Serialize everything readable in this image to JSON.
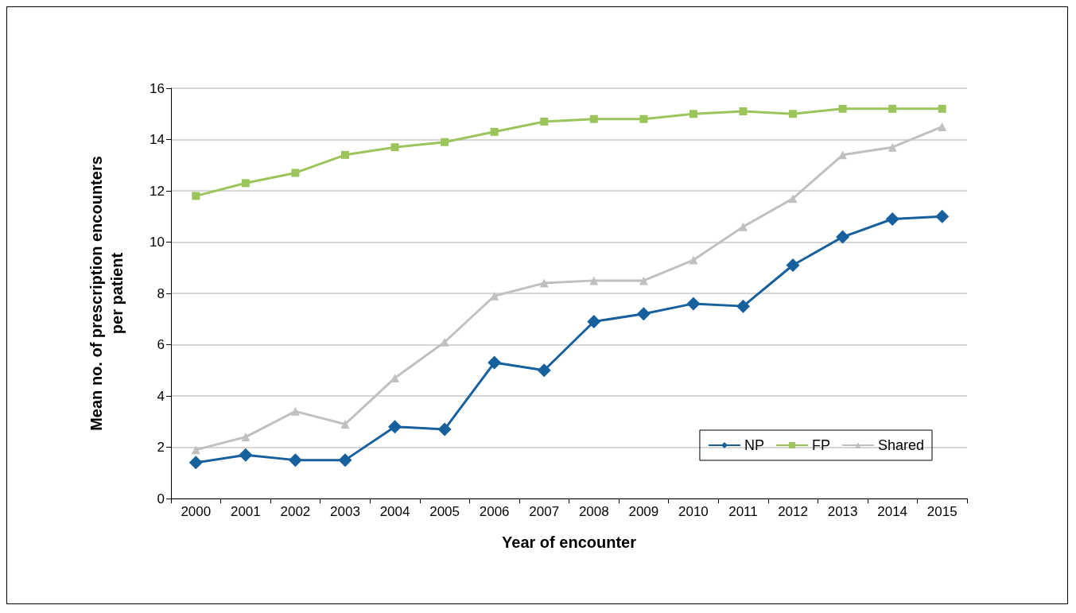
{
  "chart_data": {
    "type": "line",
    "xlabel": "Year of encounter",
    "ylabel": "Mean no. of prescription encounters\nper patient",
    "categories": [
      "2000",
      "2001",
      "2002",
      "2003",
      "2004",
      "2005",
      "2006",
      "2007",
      "2008",
      "2009",
      "2010",
      "2011",
      "2012",
      "2013",
      "2014",
      "2015"
    ],
    "series": [
      {
        "name": "NP",
        "color": "#17609e",
        "marker": "diamond",
        "values": [
          1.4,
          1.7,
          1.5,
          1.5,
          2.8,
          2.7,
          5.3,
          5.0,
          6.9,
          7.2,
          7.6,
          7.5,
          9.1,
          10.2,
          10.9,
          11.0
        ]
      },
      {
        "name": "FP",
        "color": "#9bc55a",
        "marker": "square",
        "values": [
          11.8,
          12.3,
          12.7,
          13.4,
          13.7,
          13.9,
          14.3,
          14.7,
          14.8,
          14.8,
          15.0,
          15.1,
          15.0,
          15.2,
          15.2,
          15.2
        ]
      },
      {
        "name": "Shared",
        "color": "#c0c0c0",
        "marker": "triangle",
        "values": [
          1.9,
          2.4,
          3.4,
          2.9,
          4.7,
          6.1,
          7.9,
          8.4,
          8.5,
          8.5,
          9.3,
          10.6,
          11.7,
          13.4,
          13.7,
          14.5
        ]
      }
    ],
    "ylim": [
      0,
      16
    ],
    "yticks": [
      0,
      2,
      4,
      6,
      8,
      10,
      12,
      14,
      16
    ],
    "grid": "y",
    "legend": "bottom right",
    "line_style": "solid"
  }
}
